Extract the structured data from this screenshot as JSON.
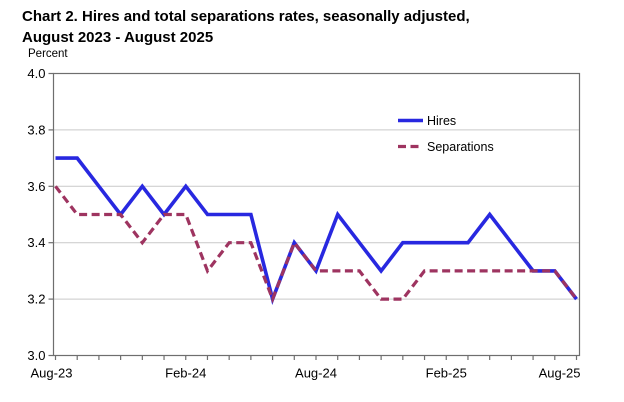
{
  "title": {
    "line1": "Chart 2. Hires and total separations rates, seasonally adjusted,",
    "line2": "August 2023 - August 2025"
  },
  "y_axis_label": "Percent",
  "legend": {
    "hires_label": "Hires",
    "separations_label": "Separations"
  },
  "colors": {
    "hires": "#2828E0",
    "separations": "#9E3460",
    "grid": "#C9C9C9",
    "frame": "#6E6E6E",
    "text": "#000000"
  },
  "chart_data": {
    "type": "line",
    "title": "Chart 2. Hires and total separations rates, seasonally adjusted, August 2023 - August 2025",
    "ylabel": "Percent",
    "ylim": [
      3.0,
      4.0
    ],
    "grid": "horizontal",
    "legend_position": "inside-top-right",
    "x": [
      "Aug-23",
      "Sep-23",
      "Oct-23",
      "Nov-23",
      "Dec-23",
      "Jan-24",
      "Feb-24",
      "Mar-24",
      "Apr-24",
      "May-24",
      "Jun-24",
      "Jul-24",
      "Aug-24",
      "Sep-24",
      "Oct-24",
      "Nov-24",
      "Dec-24",
      "Jan-25",
      "Feb-25",
      "Mar-25",
      "Apr-25",
      "May-25",
      "Jun-25",
      "Jul-25",
      "Aug-25"
    ],
    "x_tick_labels": [
      "Aug-23",
      "Feb-24",
      "Aug-24",
      "Feb-25",
      "Aug-25"
    ],
    "x_tick_positions": [
      0,
      6,
      12,
      18,
      24
    ],
    "y_ticks": [
      3.0,
      3.2,
      3.4,
      3.6,
      3.8,
      4.0
    ],
    "series": [
      {
        "name": "Hires",
        "style": "solid",
        "color_key": "hires",
        "values": [
          3.7,
          3.7,
          3.6,
          3.5,
          3.6,
          3.5,
          3.6,
          3.5,
          3.5,
          3.5,
          3.2,
          3.4,
          3.3,
          3.5,
          3.4,
          3.3,
          3.4,
          3.4,
          3.4,
          3.4,
          3.5,
          3.4,
          3.3,
          3.3,
          3.2
        ]
      },
      {
        "name": "Separations",
        "style": "dashed",
        "color_key": "separations",
        "values": [
          3.6,
          3.5,
          3.5,
          3.5,
          3.4,
          3.5,
          3.5,
          3.3,
          3.4,
          3.4,
          3.2,
          3.4,
          3.3,
          3.3,
          3.3,
          3.2,
          3.2,
          3.3,
          3.3,
          3.3,
          3.3,
          3.3,
          3.3,
          3.3,
          3.2
        ]
      }
    ]
  }
}
